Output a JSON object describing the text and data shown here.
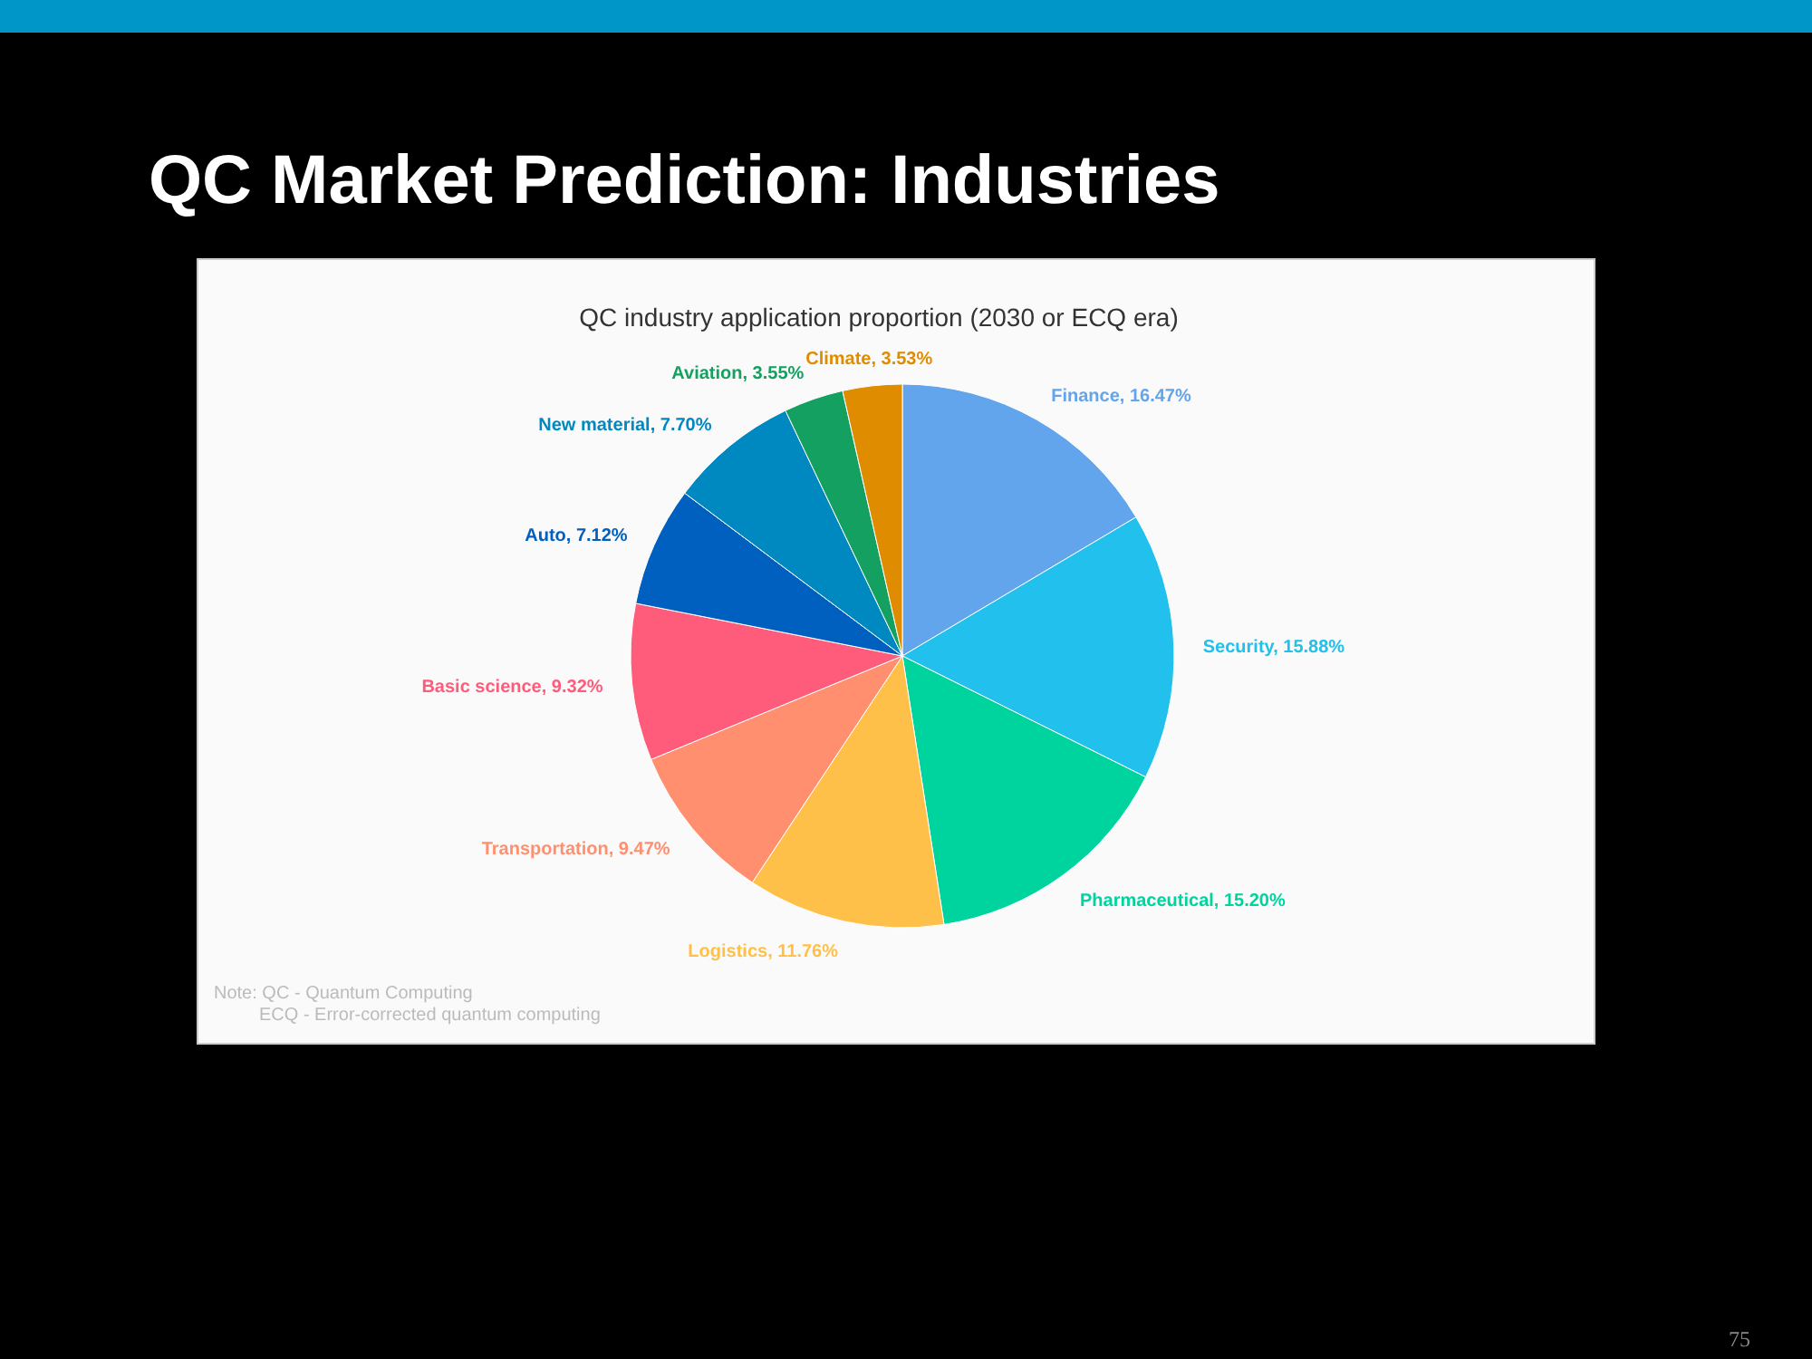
{
  "chart_data": {
    "type": "pie",
    "title": "QC Market Prediction: Industries",
    "subtitle": "QC industry application proportion (2030 or ECQ era)",
    "categories": [
      "Finance",
      "Security",
      "Pharmaceutical",
      "Logistics",
      "Transportation",
      "Basic science",
      "Auto",
      "New material",
      "Aviation",
      "Climate"
    ],
    "values": [
      16.47,
      15.88,
      15.2,
      11.76,
      9.47,
      9.32,
      7.12,
      7.7,
      3.55,
      3.53
    ],
    "value_labels": [
      ", 16.47%",
      ", 15.88%",
      ", 15.20%",
      ", 11.76%",
      ", 9.47%",
      ", 9.32%",
      ", 7.12%",
      ", 7.70%",
      ", 3.55%",
      ", 3.53%"
    ],
    "colors": [
      "#62a5ec",
      "#22c0ec",
      "#00d49e",
      "#ffc04a",
      "#ff8f6e",
      "#ff5c7c",
      "#0060c0",
      "#0088c0",
      "#14a060",
      "#e08c00"
    ],
    "annotations": [
      "Note: QC - Quantum Computing",
      "ECQ - Error-corrected quantum computing",
      "75"
    ]
  }
}
